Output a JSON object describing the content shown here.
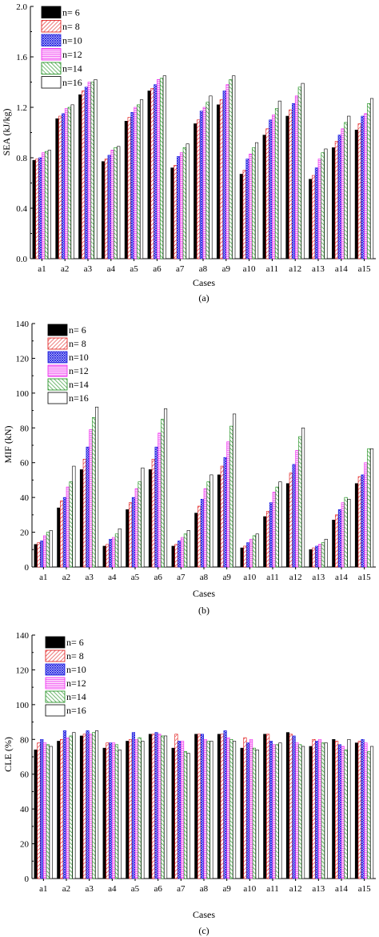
{
  "colors": {
    "n6": "#000000",
    "n8": "#e01010",
    "n10": "#1a1ae0",
    "n12": "#ee22ee",
    "n14": "#118811",
    "n16": "#000000"
  },
  "chart_data": [
    {
      "type": "bar",
      "panel_label": "(a)",
      "xlabel": "Cases",
      "ylabel": "SEA (kJ/kg)",
      "ylim": [
        0.0,
        2.0
      ],
      "yticks": [
        "0.0",
        "0.4",
        "0.8",
        "1.2",
        "1.6",
        "2.0"
      ],
      "categories": [
        "a1",
        "a2",
        "a3",
        "a4",
        "a5",
        "a6",
        "a7",
        "a8",
        "a9",
        "a10",
        "a11",
        "a12",
        "a13",
        "a14",
        "a15"
      ],
      "legend_position": "top-left",
      "series": [
        {
          "name": "n= 6",
          "values": [
            0.78,
            1.11,
            1.3,
            0.77,
            1.09,
            1.33,
            0.72,
            1.07,
            1.22,
            0.67,
            0.98,
            1.13,
            0.63,
            0.88,
            1.02
          ]
        },
        {
          "name": "n= 8",
          "values": [
            0.79,
            1.13,
            1.33,
            0.79,
            1.12,
            1.35,
            0.74,
            1.1,
            1.26,
            0.7,
            1.03,
            1.18,
            0.66,
            0.93,
            1.07
          ]
        },
        {
          "name": "n=10",
          "values": [
            0.8,
            1.15,
            1.36,
            0.82,
            1.16,
            1.38,
            0.81,
            1.17,
            1.33,
            0.79,
            1.1,
            1.23,
            0.72,
            0.98,
            1.13
          ]
        },
        {
          "name": "n=12",
          "values": [
            0.84,
            1.19,
            1.4,
            0.86,
            1.2,
            1.42,
            0.84,
            1.2,
            1.38,
            0.83,
            1.14,
            1.29,
            0.79,
            1.03,
            1.15
          ]
        },
        {
          "name": "n=14",
          "values": [
            0.85,
            1.2,
            1.4,
            0.88,
            1.22,
            1.43,
            0.88,
            1.24,
            1.42,
            0.88,
            1.19,
            1.36,
            0.84,
            1.08,
            1.23
          ]
        },
        {
          "name": "n=16",
          "values": [
            0.86,
            1.22,
            1.42,
            0.89,
            1.26,
            1.45,
            0.91,
            1.29,
            1.45,
            0.92,
            1.25,
            1.39,
            0.87,
            1.13,
            1.27
          ]
        }
      ]
    },
    {
      "type": "bar",
      "panel_label": "(b)",
      "xlabel": "Cases",
      "ylabel": "MIF (kN)",
      "ylim": [
        0,
        140
      ],
      "yticks": [
        "0",
        "20",
        "40",
        "60",
        "80",
        "100",
        "120",
        "140"
      ],
      "categories": [
        "a1",
        "a2",
        "a3",
        "a4",
        "a5",
        "a6",
        "a7",
        "a8",
        "a9",
        "a10",
        "a11",
        "a12",
        "a13",
        "a14",
        "a15"
      ],
      "legend_position": "top-left",
      "series": [
        {
          "name": "n= 6",
          "values": [
            13,
            34,
            56,
            12,
            33,
            56,
            12,
            31,
            53,
            11,
            29,
            48,
            10,
            27,
            48
          ]
        },
        {
          "name": "n= 8",
          "values": [
            14,
            38,
            62,
            13,
            37,
            62,
            13,
            35,
            58,
            12,
            32,
            54,
            11,
            30,
            52
          ]
        },
        {
          "name": "n=10",
          "values": [
            15,
            40,
            69,
            16,
            40,
            69,
            15,
            39,
            63,
            14,
            37,
            59,
            12,
            33,
            53
          ]
        },
        {
          "name": "n=12",
          "values": [
            18,
            46,
            79,
            17,
            45,
            77,
            17,
            45,
            72,
            16,
            43,
            67,
            13,
            37,
            60
          ]
        },
        {
          "name": "n=14",
          "values": [
            20,
            49,
            86,
            19,
            49,
            85,
            19,
            49,
            81,
            18,
            46,
            75,
            14,
            40,
            68
          ]
        },
        {
          "name": "n=16",
          "values": [
            21,
            58,
            92,
            22,
            57,
            91,
            21,
            53,
            88,
            19,
            49,
            80,
            16,
            39,
            68
          ]
        }
      ]
    },
    {
      "type": "bar",
      "panel_label": "(c)",
      "xlabel": "Cases",
      "ylabel": "CLE (%)",
      "ylim": [
        0,
        140
      ],
      "yticks": [
        "0",
        "20",
        "40",
        "60",
        "80",
        "100",
        "120",
        "140"
      ],
      "categories": [
        "a1",
        "a2",
        "a3",
        "a4",
        "a5",
        "a6",
        "a7",
        "a8",
        "a9",
        "a10",
        "a11",
        "a12",
        "a13",
        "a14",
        "a15"
      ],
      "legend_position": "top-left",
      "series": [
        {
          "name": "n= 6",
          "values": [
            74,
            79,
            82,
            75,
            79,
            83,
            75,
            83,
            83,
            75,
            83,
            84,
            76,
            80,
            78
          ]
        },
        {
          "name": "n= 8",
          "values": [
            78,
            80,
            83,
            78,
            80,
            83,
            83,
            83,
            83,
            81,
            83,
            83,
            80,
            79,
            79
          ]
        },
        {
          "name": "n=10",
          "values": [
            80,
            85,
            85,
            78,
            84,
            84,
            79,
            83,
            85,
            78,
            79,
            82,
            79,
            77,
            80
          ]
        },
        {
          "name": "n=12",
          "values": [
            78,
            81,
            83,
            78,
            80,
            83,
            79,
            80,
            81,
            80,
            77,
            78,
            80,
            76,
            78
          ]
        },
        {
          "name": "n=14",
          "values": [
            77,
            82,
            84,
            77,
            81,
            82,
            73,
            79,
            80,
            75,
            77,
            77,
            78,
            74,
            73
          ]
        },
        {
          "name": "n=16",
          "values": [
            76,
            84,
            85,
            74,
            79,
            82,
            72,
            79,
            79,
            74,
            78,
            76,
            78,
            80,
            76
          ]
        }
      ]
    }
  ]
}
